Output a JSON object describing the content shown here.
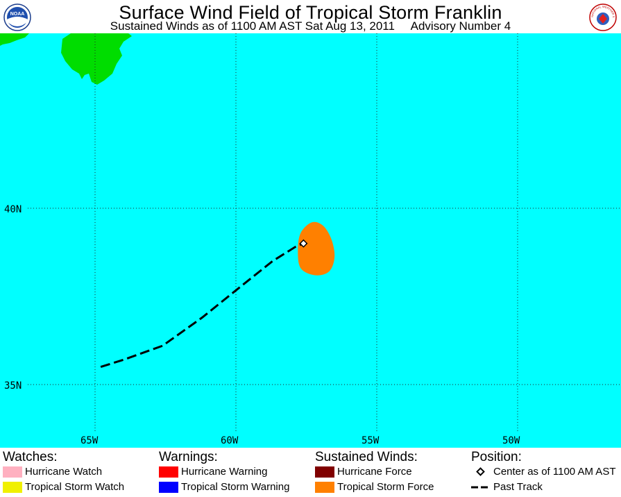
{
  "header": {
    "title": "Surface Wind Field of Tropical Storm Franklin",
    "subtitle": "Sustained Winds as of 1100 AM AST Sat Aug 13, 2011     Advisory Number 4",
    "left_logo_icon": "noaa-logo-icon",
    "right_logo_icon": "nws-logo-icon",
    "left_logo_text": "NOAA",
    "right_logo_text": "NATIONAL WEATHER SERVICE"
  },
  "map": {
    "ocean_color": "#00FFFF",
    "land_color": "#00DD00",
    "wind_color": "#FF8000",
    "lat_labels": [
      "40N",
      "35N"
    ],
    "lon_labels": [
      "65W",
      "60W",
      "55W",
      "50W"
    ],
    "past_track_lonlat": [
      [
        -64.8,
        35.5
      ],
      [
        -64.0,
        35.7
      ],
      [
        -62.6,
        36.1
      ],
      [
        -61.2,
        36.9
      ],
      [
        -59.8,
        37.8
      ],
      [
        -58.7,
        38.5
      ],
      [
        -57.9,
        38.9
      ],
      [
        -57.6,
        39.0
      ]
    ],
    "center_lonlat": [
      -57.6,
      39.0
    ],
    "wind_field_lonlat": [
      [
        -57.3,
        39.6
      ],
      [
        -56.9,
        39.5
      ],
      [
        -56.6,
        39.1
      ],
      [
        -56.5,
        38.6
      ],
      [
        -56.7,
        38.2
      ],
      [
        -57.2,
        38.1
      ],
      [
        -57.7,
        38.3
      ],
      [
        -57.8,
        38.8
      ],
      [
        -57.7,
        39.3
      ]
    ]
  },
  "legend": {
    "watches": {
      "heading": "Watches:",
      "items": [
        {
          "label": "Hurricane Watch",
          "color": "#FFB0C0"
        },
        {
          "label": "Tropical Storm Watch",
          "color": "#F0F000"
        }
      ]
    },
    "warnings": {
      "heading": "Warnings:",
      "items": [
        {
          "label": "Hurricane Warning",
          "color": "#FF0000"
        },
        {
          "label": "Tropical Storm Warning",
          "color": "#0000FF"
        }
      ]
    },
    "winds": {
      "heading": "Sustained Winds:",
      "items": [
        {
          "label": "Hurricane Force",
          "color": "#800000"
        },
        {
          "label": "Tropical Storm Force",
          "color": "#FF8000"
        }
      ]
    },
    "position": {
      "heading": "Position:",
      "items": [
        {
          "label": "Center as of 1100 AM AST",
          "icon": "diamond-icon"
        },
        {
          "label": "Past Track",
          "icon": "dashed-line-icon"
        }
      ]
    }
  }
}
